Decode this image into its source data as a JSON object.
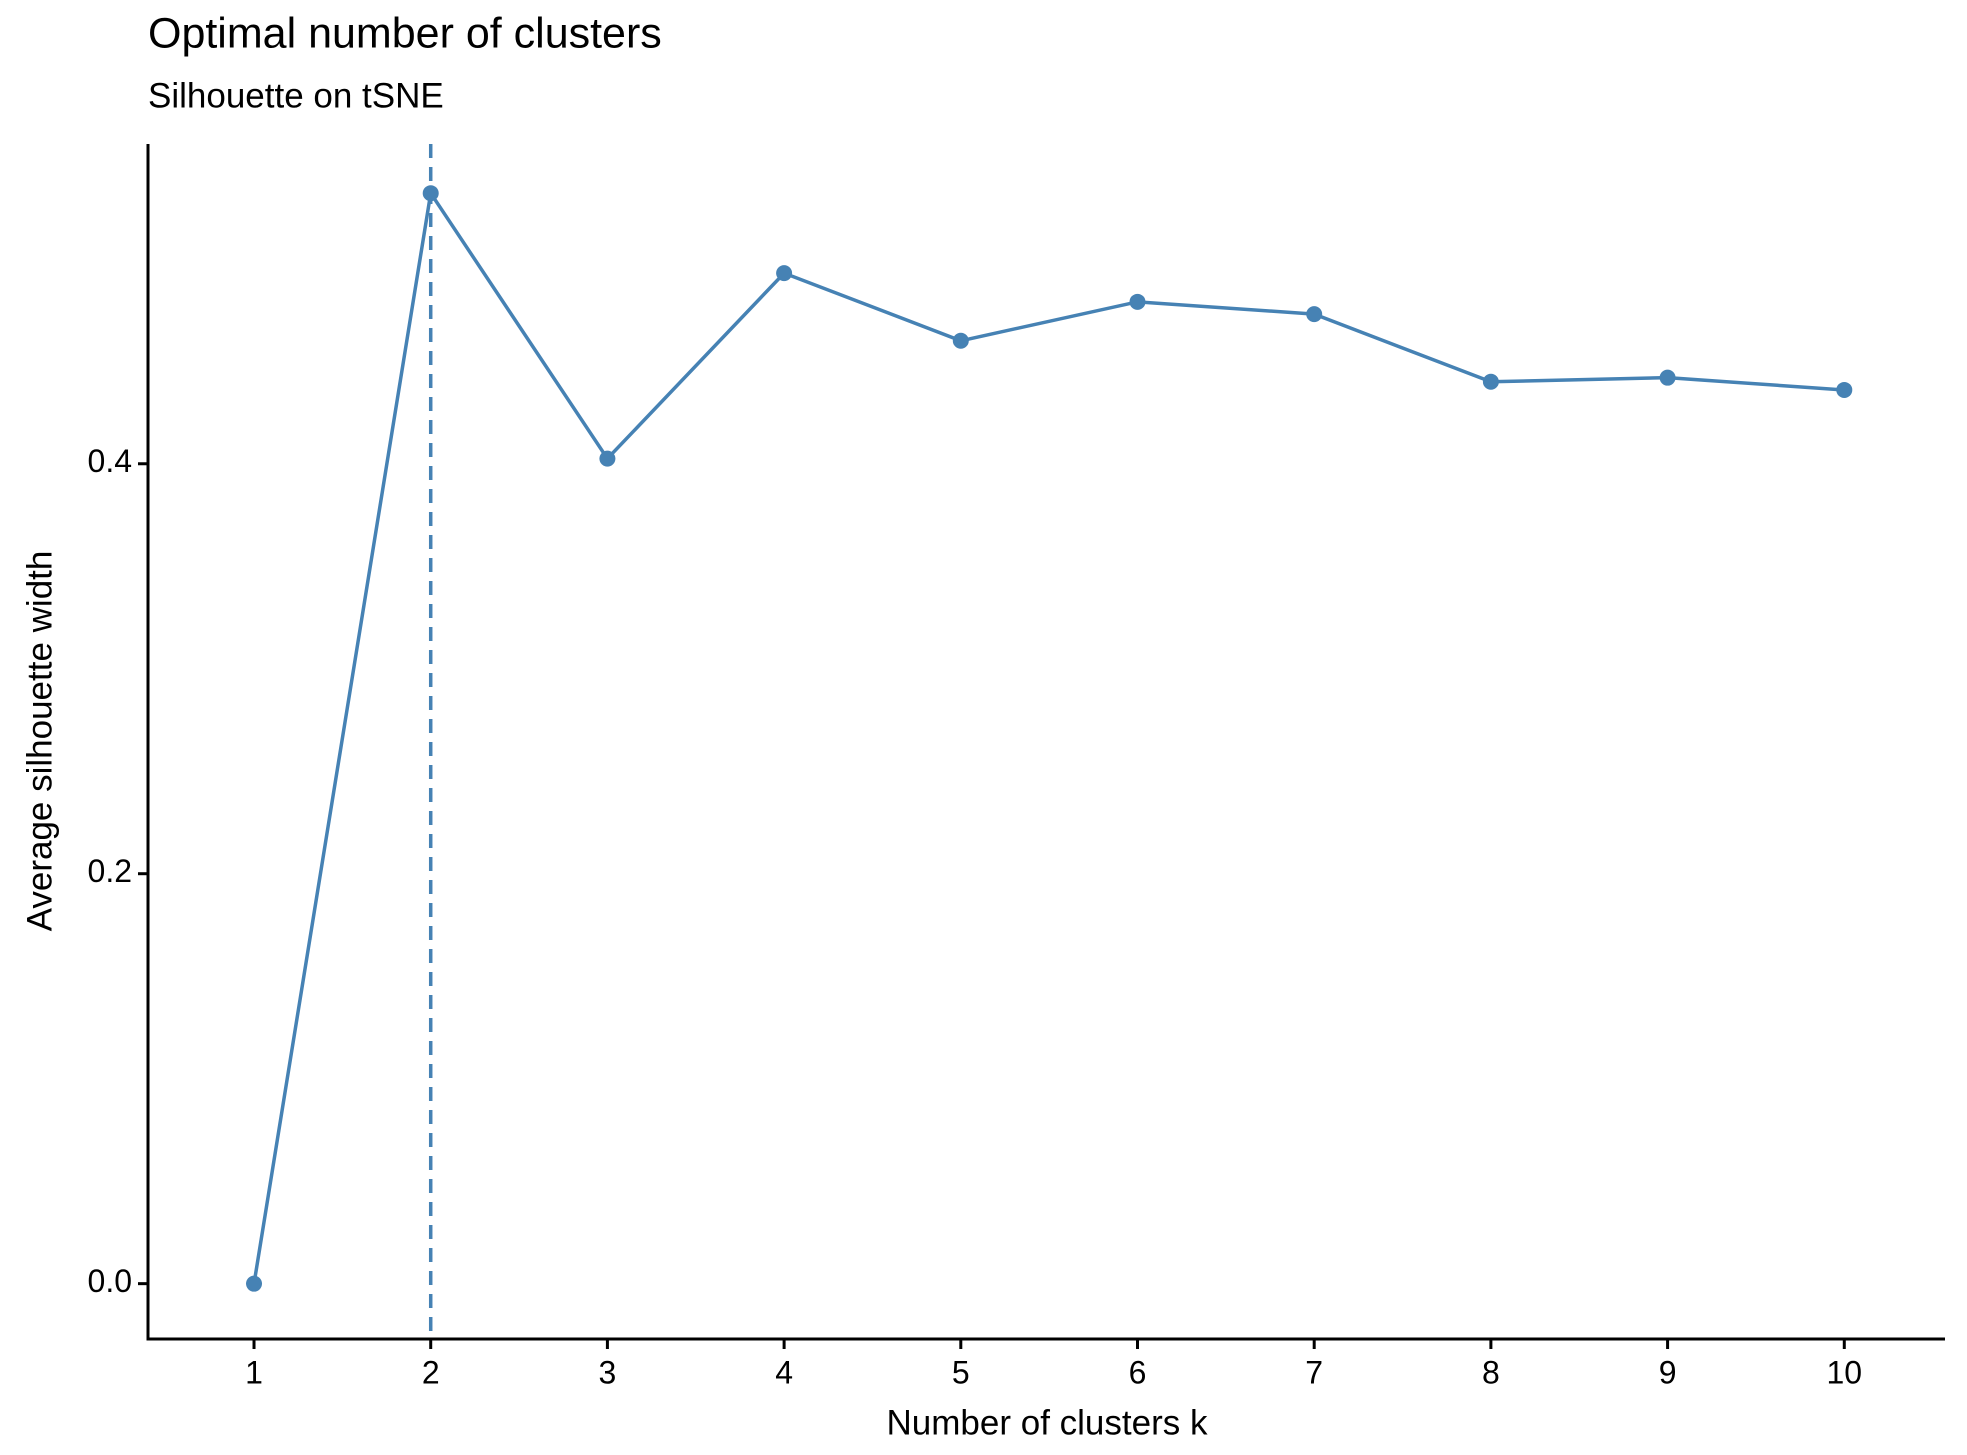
{
  "chart_data": {
    "type": "line",
    "title": "Optimal number of clusters",
    "subtitle": "Silhouette on tSNE",
    "x_label": "Number of clusters k",
    "y_label": "Average silhouette width",
    "x": [
      1,
      2,
      3,
      4,
      5,
      6,
      7,
      8,
      9,
      10
    ],
    "values": [
      0,
      0.532,
      0.4025,
      0.493,
      0.46,
      0.479,
      0.473,
      0.44,
      0.442,
      0.436
    ],
    "color": "#4682b4",
    "vline": 2,
    "xlim": [
      0.4,
      10.57
    ],
    "xticks": [
      1,
      2,
      3,
      4,
      5,
      6,
      7,
      8,
      9,
      10
    ],
    "ylim": [
      -0.027,
      0.556
    ],
    "yticks": [
      {
        "value": 0,
        "label": "0.0"
      },
      0.2,
      0.4
    ],
    "grid": false
  }
}
